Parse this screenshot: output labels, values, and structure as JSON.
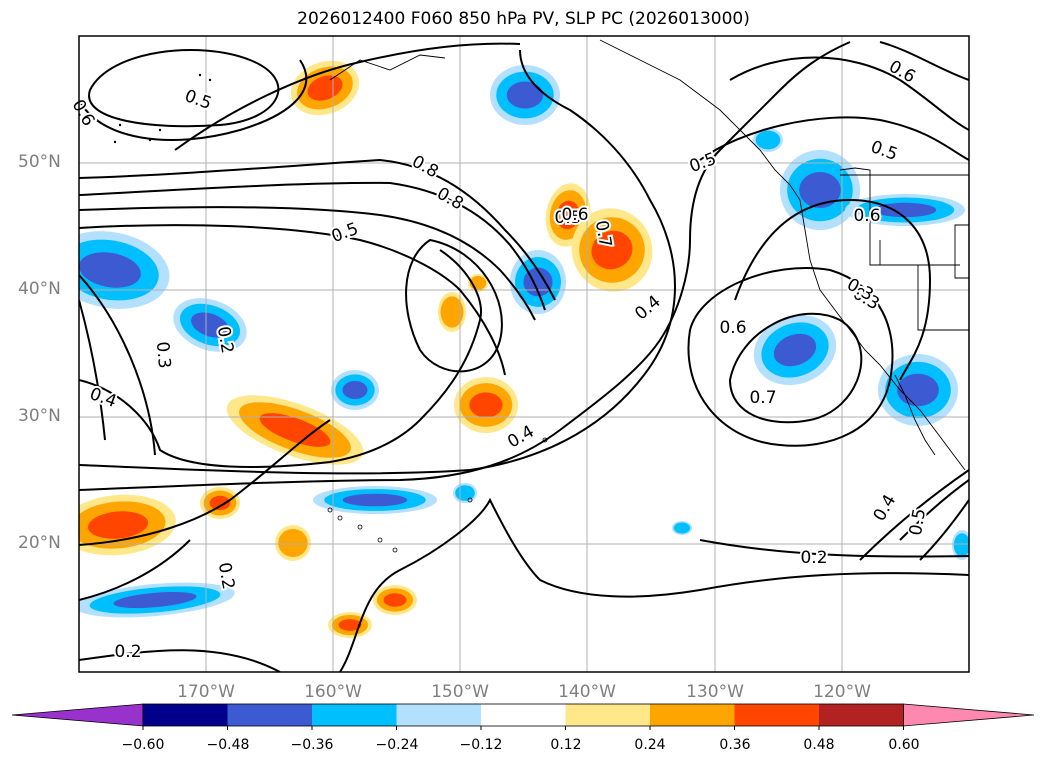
{
  "title": "2026012400 F060 850 hPa PV, SLP PC (2026013000)",
  "map": {
    "projection": "lat-lon",
    "lon_range": [
      -180,
      -110
    ],
    "lat_range": [
      10,
      60
    ],
    "lat_labels": [
      "50°N",
      "40°N",
      "30°N",
      "20°N"
    ],
    "lon_labels": [
      "170°W",
      "160°W",
      "150°W",
      "140°W",
      "130°W",
      "120°W"
    ],
    "contour_labels": [
      "0.5",
      "0.6",
      "0.8",
      "0.5",
      "0.8",
      "0.7",
      "0.5",
      "0.5",
      "0.6",
      "0.6",
      "0.2",
      "0.3",
      "0.4",
      "0.3",
      "0.4",
      "0.6",
      "0.3",
      "0.7",
      "0.4",
      "0.2",
      "0.4",
      "0.5",
      "0.2",
      "0.2",
      "0.6",
      "0.5"
    ],
    "fill_colors": {
      "neg_light": "#b3e0ff",
      "neg_mid": "#00bfff",
      "neg_strong": "#3c5ad2",
      "pos_light": "#ffe78a",
      "pos_mid": "#ffa500",
      "pos_strong": "#ff4500"
    }
  },
  "colorbar": {
    "colors": [
      "#9932cc",
      "#00008b",
      "#3c5ad2",
      "#00bfff",
      "#b3e0ff",
      "#ffffff",
      "#ffe78a",
      "#ffa500",
      "#ff4500",
      "#b22222",
      "#ff88b0"
    ],
    "tick_labels": [
      "−0.60",
      "−0.48",
      "−0.36",
      "−0.24",
      "−0.12",
      "0.12",
      "0.24",
      "0.36",
      "0.48",
      "0.60"
    ]
  }
}
